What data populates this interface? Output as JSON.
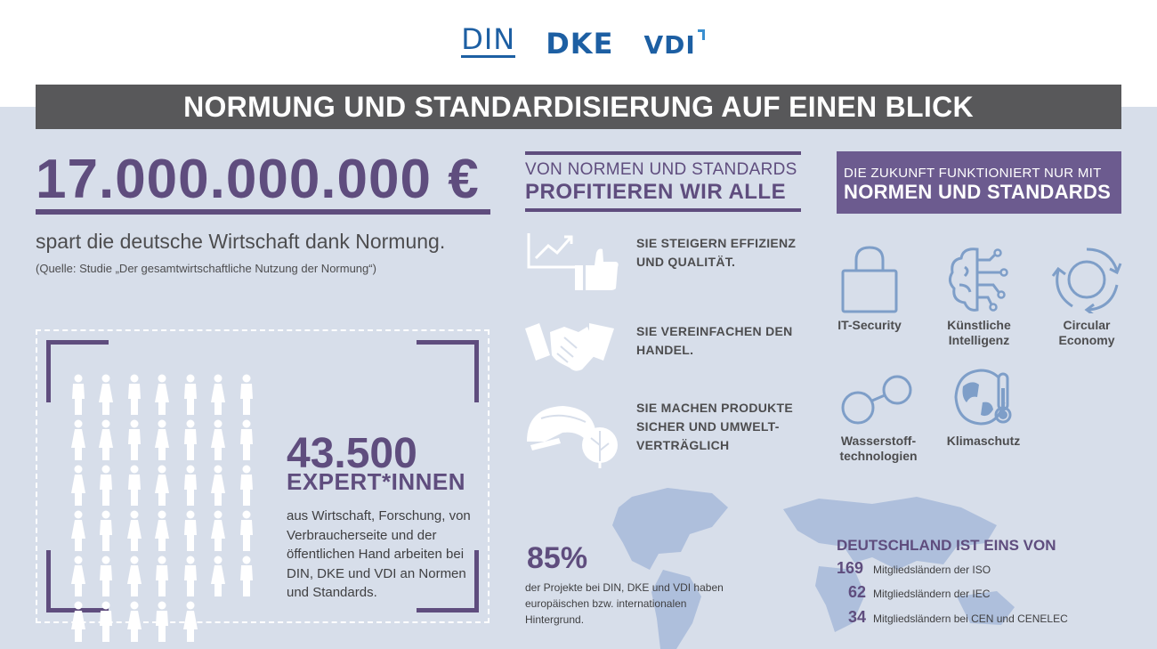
{
  "logos": {
    "din": "DIN",
    "dke": "DKE",
    "vdi": "VDI"
  },
  "title": "NORMUNG UND STANDARDISIERUNG AUF EINEN BLICK",
  "savings": {
    "amount": "17.000.000.000 €",
    "text": "spart die deutsche Wirtschaft dank Normung.",
    "source": "(Quelle: Studie „Der gesamtwirtschaftliche Nutzung der Normung“)"
  },
  "experts": {
    "number": "43.500",
    "label": "EXPERT*INNEN",
    "text": "aus Wirtschaft, Forschung, von Verbraucherseite und der öffentlichen Hand arbeiten bei DIN, DKE und VDI an Normen und Standards."
  },
  "benefits": {
    "head_line1": "VON NORMEN UND STANDARDS",
    "head_line2": "PROFITIEREN WIR ALLE",
    "items": [
      {
        "text": "SIE STEIGERN EFFIZIENZ UND QUALITÄT.",
        "icon": "growth-thumbs-up-icon"
      },
      {
        "text": "SIE VEREINFACHEN DEN HANDEL.",
        "icon": "handshake-icon"
      },
      {
        "text": "SIE MACHEN PRODUKTE SICHER UND UMWELT-VERTRÄGLICH",
        "icon": "helmet-leaf-icon"
      }
    ]
  },
  "future": {
    "head_line1": "DIE ZUKUNFT FUNKTIONIERT NUR MIT",
    "head_line2": "NORMEN UND STANDARDS",
    "items": [
      {
        "label1": "IT-Security",
        "label2": "",
        "icon": "padlock-icon"
      },
      {
        "label1": "Künstliche",
        "label2": "Intelligenz",
        "icon": "ai-brain-icon"
      },
      {
        "label1": "Circular",
        "label2": "Economy",
        "icon": "circular-arrows-icon"
      },
      {
        "label1": "Wasserstoff-",
        "label2": "technologien",
        "icon": "hydrogen-molecule-icon"
      },
      {
        "label1": "Klimaschutz",
        "label2": "",
        "icon": "globe-thermometer-icon"
      }
    ]
  },
  "projects": {
    "percent": "85%",
    "text": "der Projekte bei DIN, DKE und VDI haben europäischen bzw. internationalen Hintergrund."
  },
  "germany": {
    "head": "DEUTSCHLAND IST EINS VON",
    "rows": [
      {
        "num": "169",
        "label": "Mitgliedsländern der ISO"
      },
      {
        "num": "62",
        "label": "Mitgliedsländern der IEC"
      },
      {
        "num": "34",
        "label": "Mitgliedsländern bei CEN und CENELEC"
      }
    ]
  },
  "colors": {
    "purple": "#5f4d7e",
    "blue": "#1d5fa3",
    "icon_blue": "#7e9ec8",
    "bg": "#d7deea",
    "titlebar": "#58585a"
  }
}
